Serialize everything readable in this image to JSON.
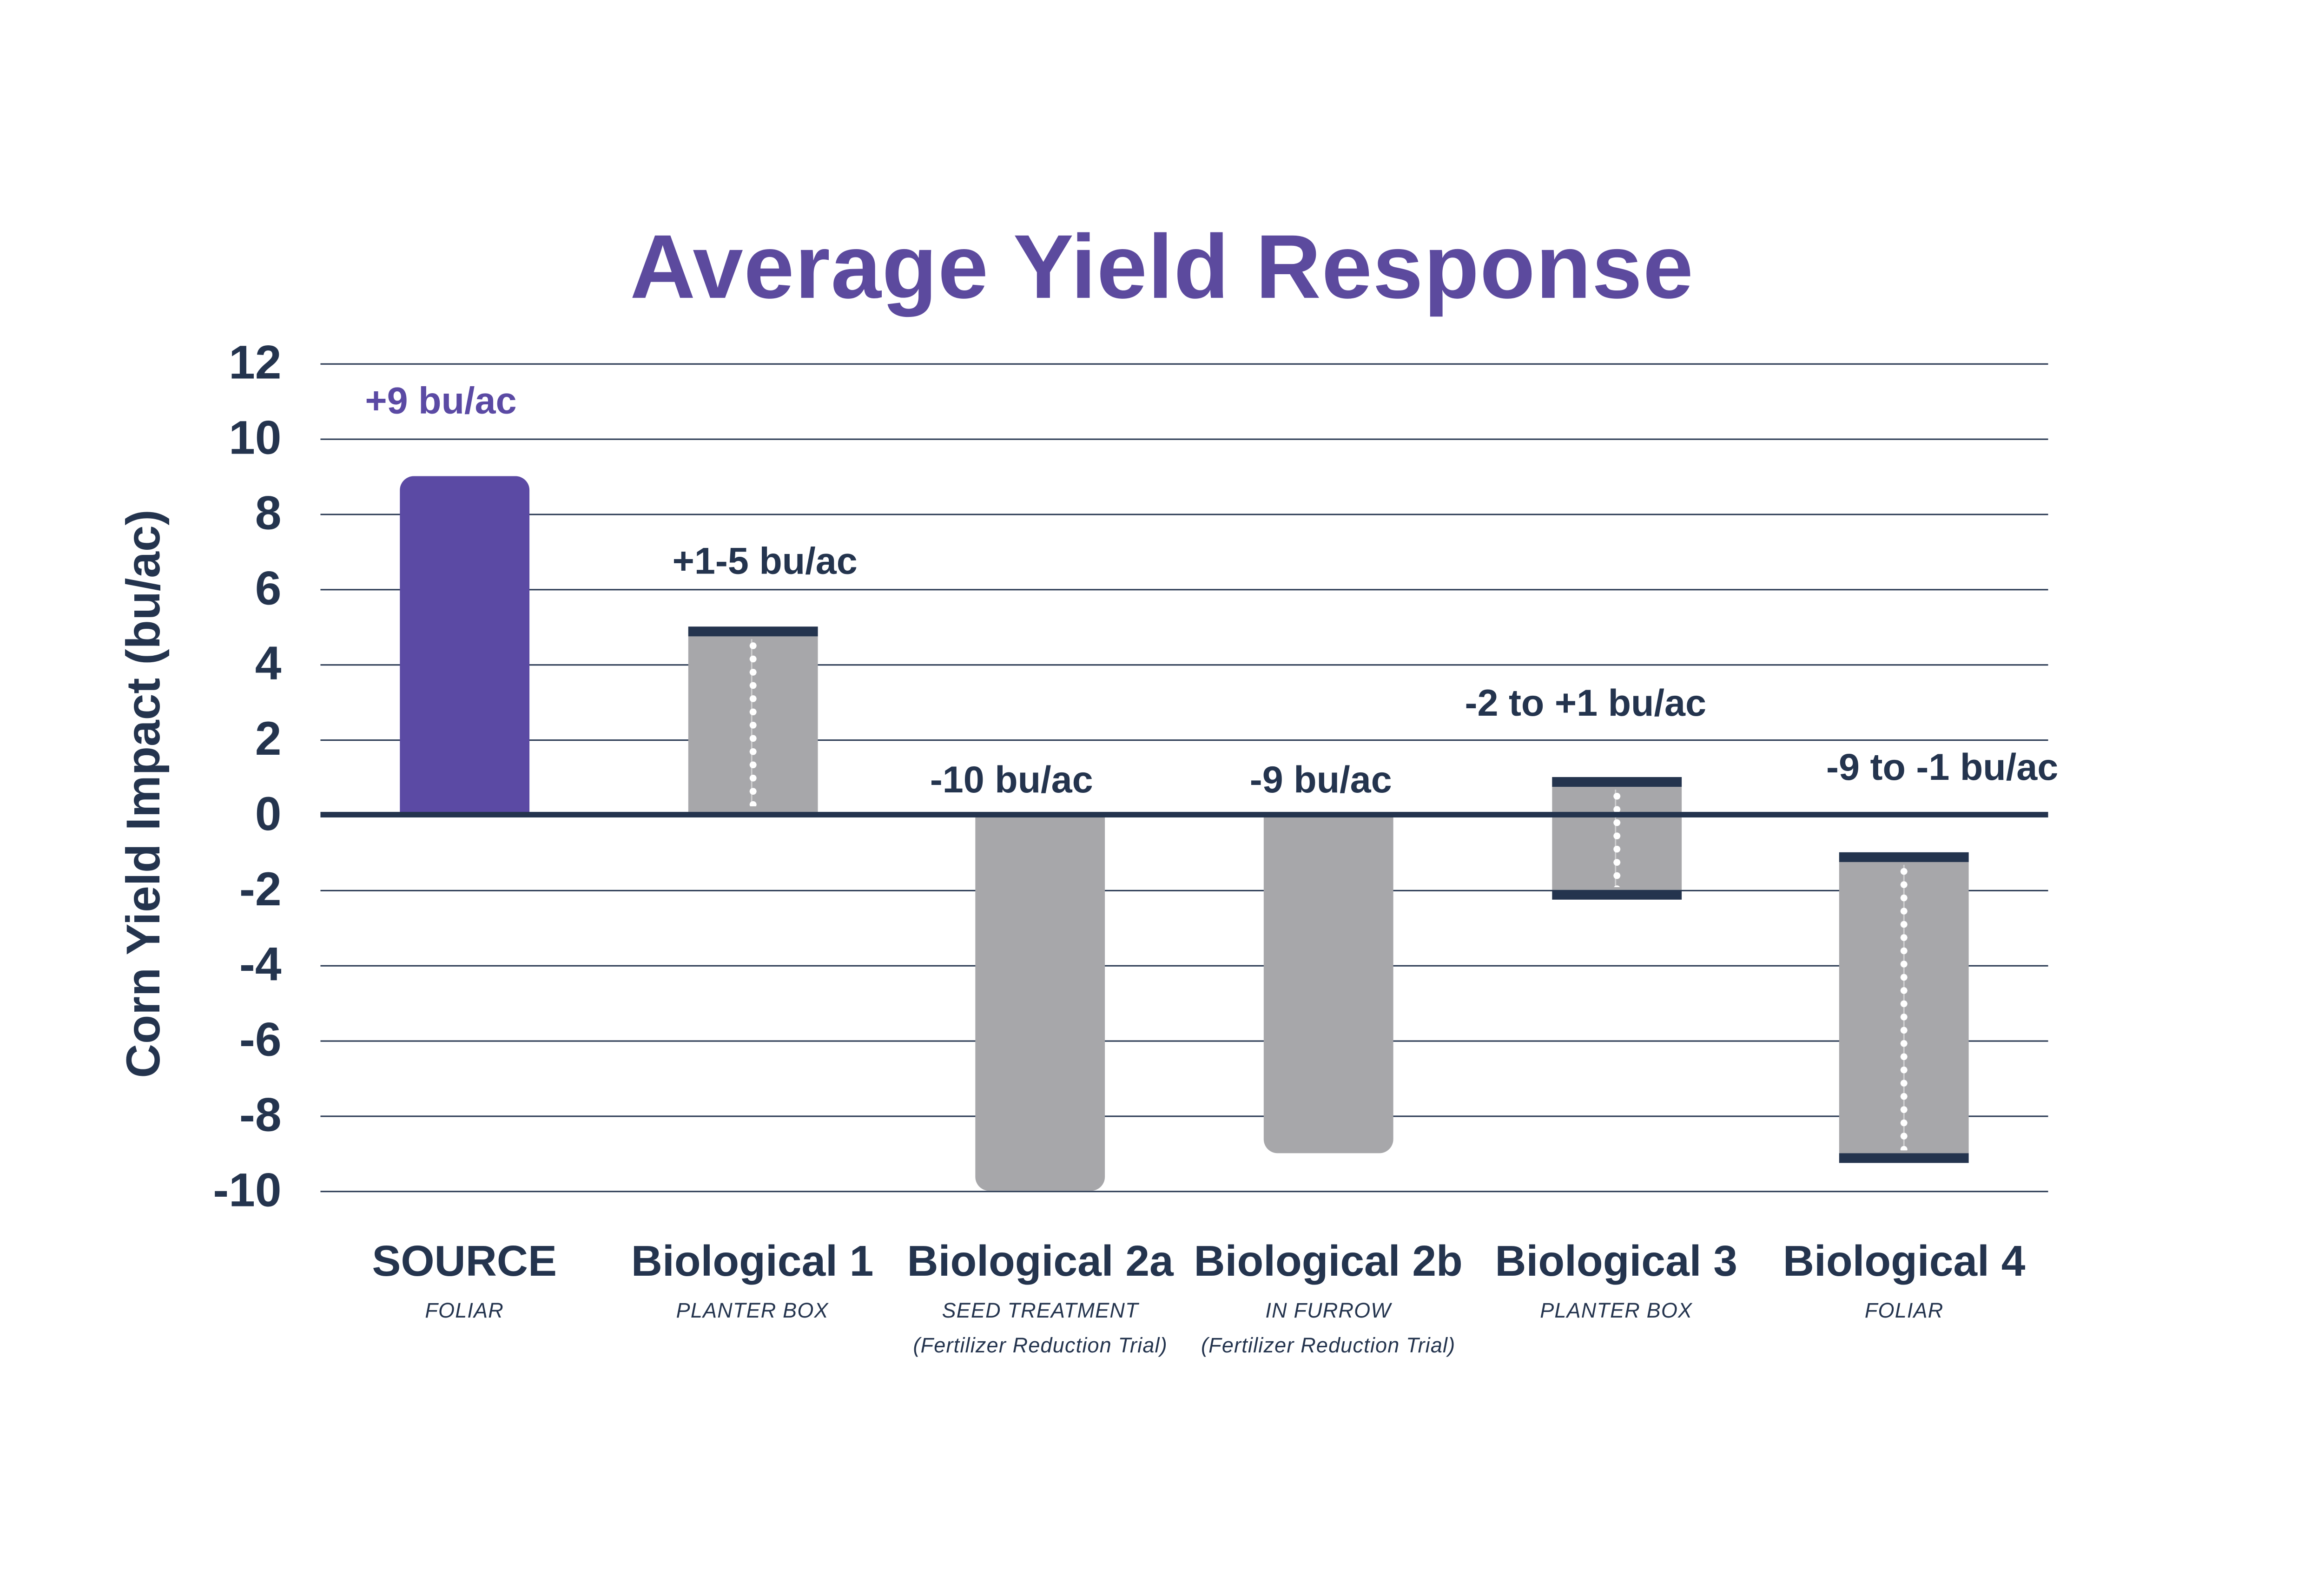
{
  "page": {
    "background": "#FFFFFF"
  },
  "colors": {
    "navy": "#24344E",
    "bar_purple": "#5B4AA4",
    "title_purple": "#5C4A9E",
    "bar_gray": "#A7A7AA",
    "dot_white": "#FFFFFF"
  },
  "chart_data": {
    "type": "bar",
    "title": "Average Yield Response",
    "ylabel": "Corn Yield Impact (bu/ac)",
    "xlabel": "",
    "ylim": [
      -10,
      12
    ],
    "y_ticks": [
      12,
      10,
      8,
      6,
      4,
      2,
      0,
      -2,
      -4,
      -6,
      -8,
      -10
    ],
    "grid": true,
    "zero_line_emphasized": true,
    "legend_position": "none",
    "categories": [
      {
        "name": "SOURCE",
        "application": "FOLIAR",
        "note": "",
        "annotation": "+9 bu/ac",
        "value_range": [
          0,
          9
        ],
        "color": "purple",
        "rounded": "top",
        "caps": [],
        "dotted_range_line": false
      },
      {
        "name": "Biological 1",
        "application": "PLANTER BOX",
        "note": "",
        "annotation": "+1-5 bu/ac",
        "value_range": [
          0,
          5
        ],
        "color": "gray",
        "rounded": "none",
        "caps": [
          "top"
        ],
        "dotted_range_line": true
      },
      {
        "name": "Biological 2a",
        "application": "SEED TREATMENT",
        "note": "(Fertilizer Reduction Trial)",
        "annotation": "-10 bu/ac",
        "value_range": [
          -10,
          0
        ],
        "color": "gray",
        "rounded": "bottom",
        "caps": [],
        "dotted_range_line": false
      },
      {
        "name": "Biological 2b",
        "application": "IN FURROW",
        "note": "(Fertilizer Reduction Trial)",
        "annotation": "-9 bu/ac",
        "value_range": [
          -9,
          0
        ],
        "color": "gray",
        "rounded": "bottom",
        "caps": [],
        "dotted_range_line": false
      },
      {
        "name": "Biological 3",
        "application": "PLANTER BOX",
        "note": "",
        "annotation": "-2 to +1 bu/ac",
        "value_range": [
          -2,
          1
        ],
        "color": "gray",
        "rounded": "none",
        "caps": [
          "top",
          "bottom"
        ],
        "dotted_range_line": true
      },
      {
        "name": "Biological 4",
        "application": "FOLIAR",
        "note": "",
        "annotation": "-9 to -1 bu/ac",
        "value_range": [
          -9,
          -1
        ],
        "color": "gray",
        "rounded": "none",
        "caps": [
          "top",
          "bottom"
        ],
        "dotted_range_line": true
      }
    ]
  }
}
